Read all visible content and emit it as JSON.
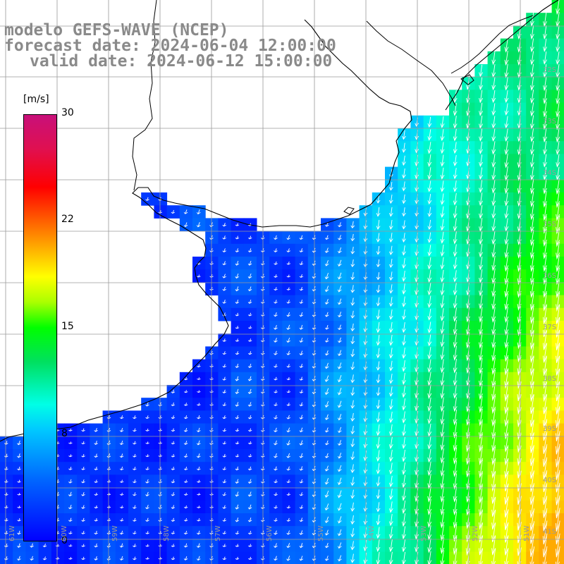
{
  "titles": {
    "line1": "modelo GEFS-WAVE (NCEP)",
    "line2": "forecast date: 2024-06-04 12:00:00",
    "line3": "valid date: 2024-06-12 15:00:00"
  },
  "colorbar": {
    "unit": "[m/s]",
    "ticks": [
      "30",
      "22",
      "15",
      "8",
      "0"
    ],
    "tick_values": [
      30,
      22,
      15,
      8,
      0
    ],
    "range": [
      0,
      30
    ]
  },
  "lat_labels": [
    "32S",
    "33S",
    "34S",
    "35S",
    "36S",
    "37S",
    "38S",
    "39S",
    "40S",
    "41S"
  ],
  "lon_labels": [
    "61W",
    "60W",
    "59W",
    "58W",
    "57W",
    "56W",
    "55W",
    "54W",
    "53W",
    "52W",
    "51W"
  ],
  "colors": {
    "land": "#ffffff",
    "coast": "#000000",
    "grid": "#9a9a9a",
    "arrows": "#ffffff",
    "title": "#8a8a8a"
  }
}
